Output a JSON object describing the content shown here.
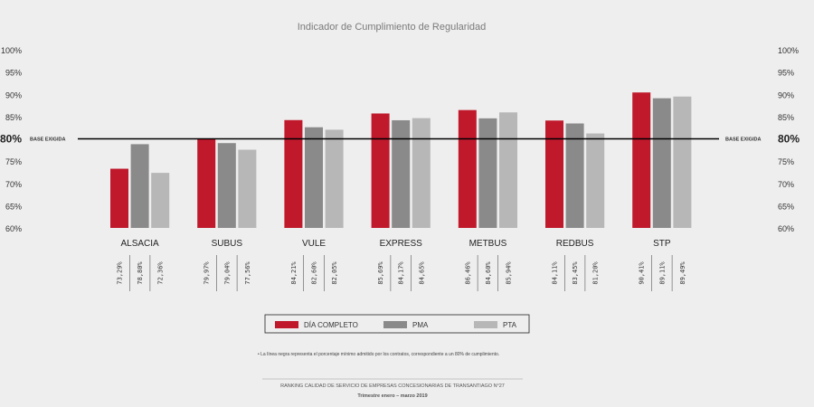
{
  "chart_data": {
    "type": "bar",
    "title": "Indicador de Cumplimiento de Regularidad",
    "categories": [
      "ALSACIA",
      "SUBUS",
      "VULE",
      "EXPRESS",
      "METBUS",
      "REDBUS",
      "STP"
    ],
    "series": [
      {
        "name": "DÍA COMPLETO",
        "color": "#c0192c",
        "values": [
          73.29,
          79.97,
          84.21,
          85.69,
          86.46,
          84.11,
          90.41
        ]
      },
      {
        "name": "PMA",
        "color": "#8a8a8a",
        "values": [
          78.8,
          79.04,
          82.6,
          84.17,
          84.6,
          83.45,
          89.11
        ]
      },
      {
        "name": "PTA",
        "color": "#b7b7b7",
        "values": [
          72.36,
          77.56,
          82.05,
          84.65,
          85.94,
          81.2,
          89.49
        ]
      }
    ],
    "value_labels": [
      [
        "73,29%",
        "78,80%",
        "72,36%"
      ],
      [
        "79,97%",
        "79,04%",
        "77,56%"
      ],
      [
        "84,21%",
        "82,60%",
        "82,05%"
      ],
      [
        "85,69%",
        "84,17%",
        "84,65%"
      ],
      [
        "86,46%",
        "84,60%",
        "85,94%"
      ],
      [
        "84,11%",
        "83,45%",
        "81,20%"
      ],
      [
        "90,41%",
        "89,11%",
        "89,49%"
      ]
    ],
    "ylim": [
      60,
      100
    ],
    "yticks": [
      60,
      65,
      70,
      75,
      80,
      85,
      90,
      95,
      100
    ],
    "ytick_labels": [
      "60%",
      "65%",
      "70%",
      "75%",
      "80%",
      "85%",
      "90%",
      "95%",
      "100%"
    ],
    "reference_line": {
      "value": 80,
      "label": "BASE EXIGIDA"
    },
    "grid": false,
    "legend_position": "bottom-center"
  },
  "note": "• La línea negra representa el porcentaje mínimo admitido por los contratos, correspondiente a un 80% de cumplimiento.",
  "footer": {
    "line1": "RANKING CALIDAD DE SERVICIO DE EMPRESAS CONCESIONARIAS DE TRANSANTIAGO  N°27",
    "line2": "Trimestre enero – marzo 2019"
  }
}
